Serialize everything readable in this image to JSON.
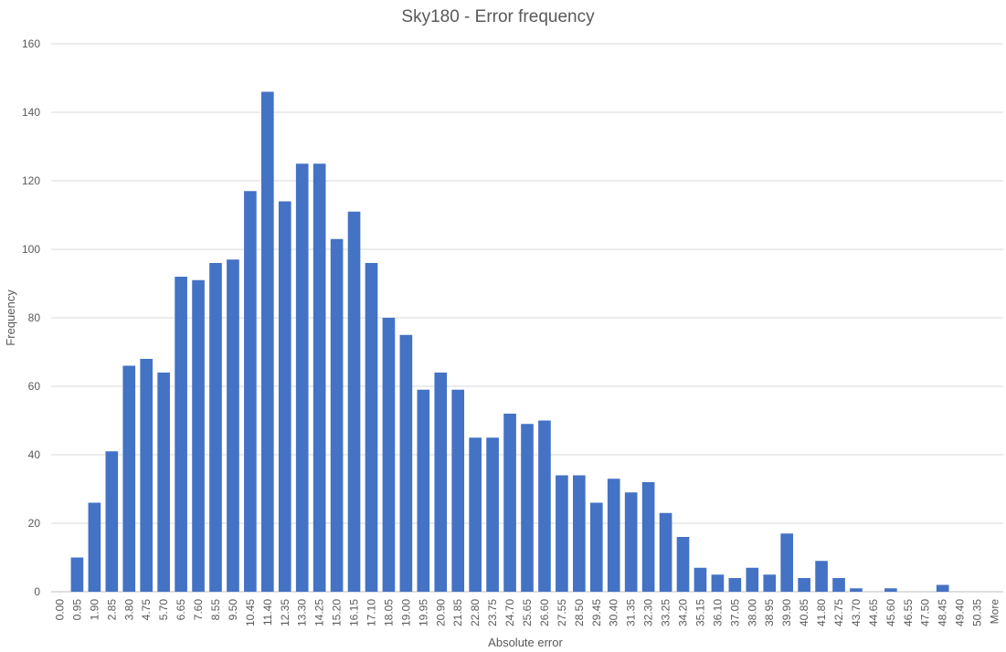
{
  "chart_data": {
    "type": "bar",
    "title": "Sky180 - Error frequency",
    "xlabel": "Absolute error",
    "ylabel": "Frequency",
    "ylim": [
      0,
      160
    ],
    "yticks": [
      0,
      20,
      40,
      60,
      80,
      100,
      120,
      140,
      160
    ],
    "grid": true,
    "legend": "none",
    "bar_color": "#4472C4",
    "categories": [
      "0.00",
      "0.95",
      "1.90",
      "2.85",
      "3.80",
      "4.75",
      "5.70",
      "6.65",
      "7.60",
      "8.55",
      "9.50",
      "10.45",
      "11.40",
      "12.35",
      "13.30",
      "14.25",
      "15.20",
      "16.15",
      "17.10",
      "18.05",
      "19.00",
      "19.95",
      "20.90",
      "21.85",
      "22.80",
      "23.75",
      "24.70",
      "25.65",
      "26.60",
      "27.55",
      "28.50",
      "29.45",
      "30.40",
      "31.35",
      "32.30",
      "33.25",
      "34.20",
      "35.15",
      "36.10",
      "37.05",
      "38.00",
      "38.95",
      "39.90",
      "40.85",
      "41.80",
      "42.75",
      "43.70",
      "44.65",
      "45.60",
      "46.55",
      "47.50",
      "48.45",
      "49.40",
      "50.35",
      "More"
    ],
    "values": [
      0,
      10,
      26,
      41,
      66,
      68,
      64,
      92,
      91,
      96,
      97,
      117,
      146,
      114,
      125,
      125,
      103,
      111,
      96,
      80,
      75,
      59,
      64,
      59,
      45,
      45,
      52,
      49,
      50,
      34,
      34,
      26,
      33,
      29,
      32,
      23,
      16,
      7,
      5,
      4,
      7,
      5,
      17,
      4,
      9,
      4,
      1,
      0,
      1,
      0,
      0,
      2,
      0,
      0,
      0
    ]
  }
}
